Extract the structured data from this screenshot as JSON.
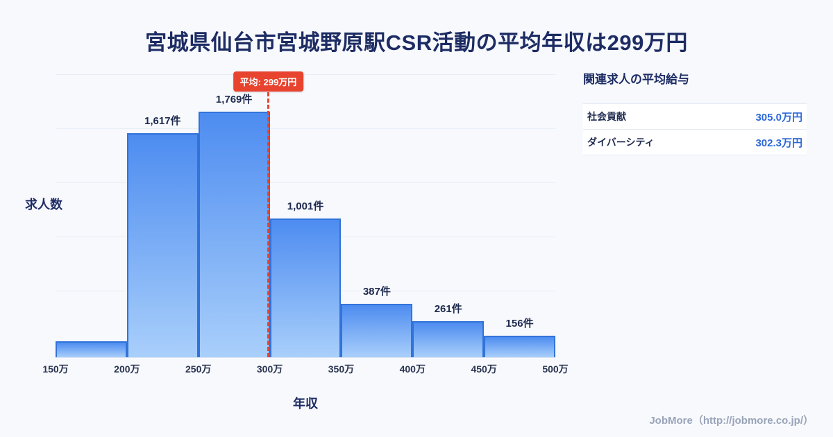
{
  "page": {
    "title": "宮城県仙台市宮城野原駅CSR活動の平均年収は299万円",
    "background_color": "#f7f9fd"
  },
  "chart_data": {
    "type": "bar",
    "title": "宮城県仙台市宮城野原駅CSR活動の平均年収は299万円",
    "xlabel": "年収",
    "ylabel": "求人数",
    "x_ticks": [
      "150万",
      "200万",
      "250万",
      "300万",
      "350万",
      "400万",
      "450万",
      "500万"
    ],
    "bars": [
      {
        "range": "150万-200万",
        "value": 115,
        "label": ""
      },
      {
        "range": "200万-250万",
        "value": 1617,
        "label": "1,617件"
      },
      {
        "range": "250万-300万",
        "value": 1769,
        "label": "1,769件"
      },
      {
        "range": "300万-350万",
        "value": 1001,
        "label": "1,001件"
      },
      {
        "range": "350万-400万",
        "value": 387,
        "label": "387件"
      },
      {
        "range": "400万-450万",
        "value": 261,
        "label": "261件"
      },
      {
        "range": "450万-500万",
        "value": 156,
        "label": "156件"
      }
    ],
    "ylim": [
      0,
      2050
    ],
    "grid": true,
    "average": {
      "value": 299,
      "label": "平均: 299万円",
      "x_range": [
        150,
        500
      ]
    },
    "colors": {
      "bar_top": "#4d8cf0",
      "bar_bottom": "#a9cffb",
      "bar_border": "#3273d9",
      "average_line": "#e8432e"
    }
  },
  "side_panel": {
    "heading": "関連求人の平均給与",
    "rows": [
      {
        "label": "社会貢献",
        "value": "305.0万円"
      },
      {
        "label": "ダイバーシティ",
        "value": "302.3万円"
      }
    ]
  },
  "footer": {
    "credit": "JobMore（http://jobmore.co.jp/）"
  }
}
